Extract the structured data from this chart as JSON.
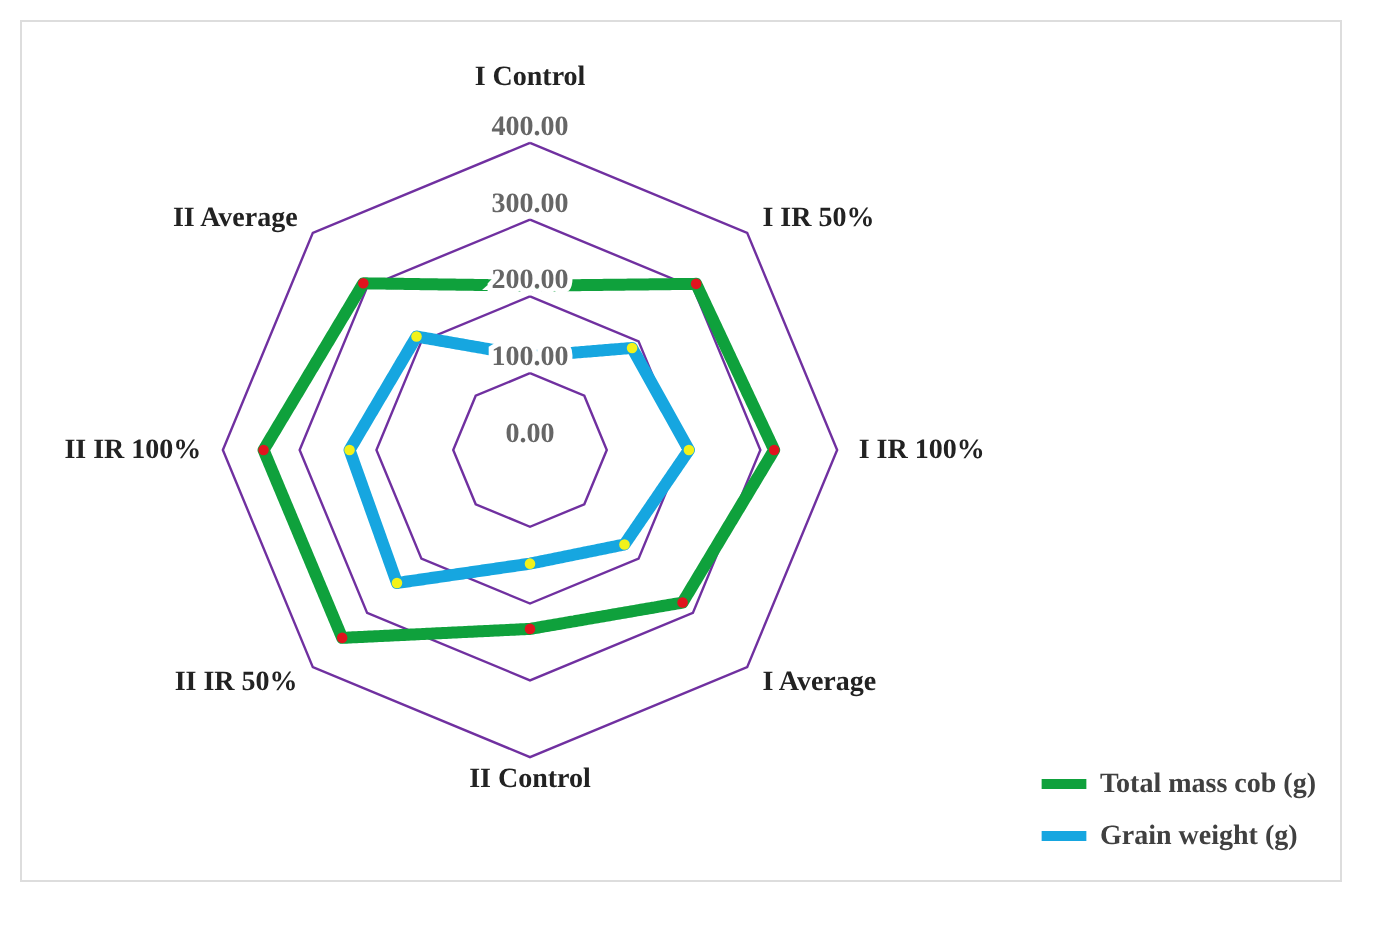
{
  "chart_data": {
    "type": "radar",
    "categories": [
      "I Control",
      "I IR 50%",
      "I IR 100%",
      "I Average",
      "II Control",
      "II IR 50%",
      "II IR 100%",
      "II Average"
    ],
    "series": [
      {
        "name": "Total mass cob (g)",
        "color": "#0fa13c",
        "values": [
          214,
          306,
          318,
          281,
          233,
          346,
          347,
          307
        ]
      },
      {
        "name": "Grain weight (g)",
        "color": "#16a6e0",
        "values": [
          122,
          188,
          207,
          174,
          148,
          245,
          235,
          209
        ]
      }
    ],
    "ylim": [
      0,
      400
    ],
    "yticks": [
      {
        "value": 0,
        "label": "0.00"
      },
      {
        "value": 100,
        "label": "100.00"
      },
      {
        "value": 200,
        "label": "200.00"
      },
      {
        "value": 300,
        "label": "300.00"
      },
      {
        "value": 400,
        "label": "400.00"
      }
    ],
    "grid": true,
    "legend": "bottom right",
    "marker": "circle",
    "line_style": "solid"
  }
}
